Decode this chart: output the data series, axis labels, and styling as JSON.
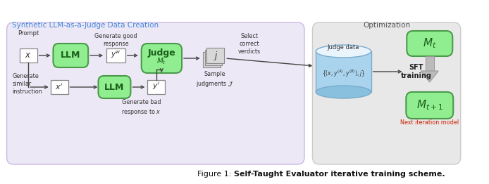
{
  "title_normal": "Figure 1: ",
  "title_bold": "Self-Taught Evaluator iterative training scheme.",
  "left_box_title": "Synthetic LLM-as-a-Judge Data Creation",
  "right_box_title": "Optimization",
  "green_color": "#90EE90",
  "green_border": "#4a9a4a",
  "lavender_bg": "#ede8f5",
  "gray_bg": "#e8e8e8",
  "blue_cyl_body": "#aad4ee",
  "blue_cyl_top": "#d8eef8",
  "blue_cyl_bot": "#88c0de",
  "arrow_color": "#444444",
  "text_color": "#333333",
  "caption_color": "#111111",
  "red_text": "#cc2200",
  "blue_title": "#4488dd",
  "gray_title": "#555555",
  "green_text": "#1a5e1a"
}
